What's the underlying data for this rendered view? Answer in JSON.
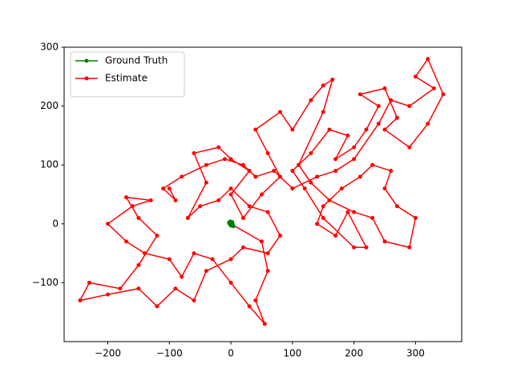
{
  "chart_data": {
    "type": "line",
    "xlim": [
      -271,
      375
    ],
    "ylim": [
      -200,
      300
    ],
    "xticks": [
      {
        "value": -200,
        "label": "−200"
      },
      {
        "value": -100,
        "label": "−100"
      },
      0,
      100,
      200,
      300
    ],
    "yticks": [
      {
        "value": -100,
        "label": "−100"
      },
      0,
      100,
      200,
      300
    ],
    "legend": "upper left",
    "series": [
      {
        "name": "Ground Truth",
        "color": "#008000",
        "x": [
          -3,
          2,
          3,
          0,
          -2,
          1,
          4,
          -1
        ],
        "values": [
          2,
          3,
          -1,
          -3,
          0,
          1,
          -4,
          4
        ]
      },
      {
        "name": "Estimate",
        "color": "#ff0000",
        "x": [
          0,
          50,
          60,
          40,
          55,
          30,
          0,
          -30,
          -60,
          -80,
          -100,
          -140,
          -170,
          -200,
          -160,
          -130,
          -170,
          -150,
          -120,
          -150,
          -180,
          -230,
          -245,
          -200,
          -150,
          -120,
          -90,
          -60,
          -40,
          0,
          20,
          60,
          80,
          60,
          30,
          0,
          -20,
          -50,
          -70,
          -40,
          -60,
          -20,
          0,
          30,
          0,
          20,
          50,
          80,
          60,
          40,
          80,
          100,
          130,
          150,
          165,
          150,
          110,
          130,
          160,
          200,
          230,
          250,
          290,
          300,
          270,
          250,
          260,
          230,
          210,
          180,
          150,
          140,
          170,
          190,
          220,
          200,
          150,
          120,
          100,
          130,
          160,
          190,
          170,
          200,
          220,
          240,
          210,
          250,
          270,
          250,
          290,
          320,
          345,
          320,
          300,
          330,
          290,
          260,
          240,
          200,
          170,
          140,
          100,
          70,
          40,
          20,
          -10,
          -40,
          -80,
          -110,
          -90,
          -100
        ],
        "values": [
          0,
          -30,
          -80,
          -130,
          -170,
          -140,
          -100,
          -60,
          -50,
          -90,
          -60,
          -50,
          -30,
          0,
          30,
          40,
          45,
          10,
          -20,
          -70,
          -110,
          -100,
          -130,
          -120,
          -110,
          -140,
          -110,
          -130,
          -80,
          -60,
          -40,
          -50,
          -20,
          20,
          30,
          60,
          40,
          30,
          10,
          70,
          120,
          130,
          110,
          90,
          50,
          10,
          50,
          80,
          120,
          160,
          190,
          160,
          210,
          235,
          245,
          190,
          100,
          70,
          40,
          20,
          10,
          -30,
          -40,
          10,
          30,
          60,
          90,
          100,
          80,
          60,
          30,
          0,
          -20,
          20,
          -40,
          -40,
          10,
          60,
          90,
          120,
          160,
          150,
          110,
          130,
          160,
          200,
          220,
          230,
          180,
          160,
          130,
          170,
          220,
          280,
          250,
          230,
          200,
          210,
          170,
          110,
          90,
          80,
          60,
          90,
          80,
          100,
          110,
          100,
          80,
          60,
          40,
          60
        ]
      }
    ]
  }
}
